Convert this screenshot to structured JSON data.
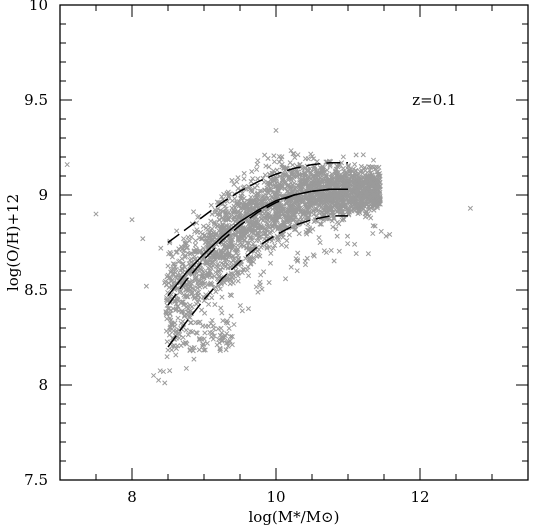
{
  "chart_data": {
    "type": "scatter",
    "title": "",
    "xlabel": "log(M*/M⊙)",
    "ylabel": "log(O/H)+12",
    "xlim": [
      7,
      13.5
    ],
    "ylim": [
      7.5,
      10
    ],
    "xticks": [
      8,
      10,
      12
    ],
    "xtick_labels": [
      "8",
      "10",
      "12"
    ],
    "yticks": [
      7.5,
      8,
      8.5,
      9,
      9.5,
      10
    ],
    "ytick_labels": [
      "7.5",
      "8",
      "8.5",
      "9",
      "9.5",
      "10"
    ],
    "grid": false,
    "legend": "none",
    "annotations": [
      {
        "text": "z=0.1",
        "x": 12.2,
        "y": 9.5
      }
    ],
    "colors": {
      "scatter": "#9a9a9a",
      "lines": "#000000",
      "axes": "#000000"
    },
    "scatter_outliers": [
      {
        "x": 7.1,
        "y": 9.16
      },
      {
        "x": 7.5,
        "y": 8.9
      },
      {
        "x": 8.0,
        "y": 8.87
      },
      {
        "x": 12.7,
        "y": 8.93
      },
      {
        "x": 8.3,
        "y": 8.05
      },
      {
        "x": 8.2,
        "y": 8.52
      },
      {
        "x": 8.15,
        "y": 8.77
      },
      {
        "x": 8.4,
        "y": 8.72
      },
      {
        "x": 10.0,
        "y": 9.34
      },
      {
        "x": 8.6,
        "y": 8.26
      },
      {
        "x": 8.75,
        "y": 8.22
      },
      {
        "x": 8.85,
        "y": 8.18
      }
    ],
    "scatter_cloud": {
      "description_points": [
        {
          "x": 8.5,
          "y_low": 8.2,
          "y_high": 8.75
        },
        {
          "x": 9.0,
          "y_low": 8.35,
          "y_high": 8.95
        },
        {
          "x": 9.5,
          "y_low": 8.55,
          "y_high": 9.1
        },
        {
          "x": 10.0,
          "y_low": 8.7,
          "y_high": 9.2
        },
        {
          "x": 10.5,
          "y_low": 8.8,
          "y_high": 9.22
        },
        {
          "x": 11.0,
          "y_low": 8.85,
          "y_high": 9.2
        },
        {
          "x": 11.4,
          "y_low": 8.9,
          "y_high": 9.15
        }
      ]
    },
    "series": [
      {
        "style": "long-dash",
        "x": [
          8.5,
          8.75,
          9.0,
          9.25,
          9.5,
          9.75,
          10.0,
          10.25,
          10.5,
          10.75,
          11.0
        ],
        "y": [
          8.42,
          8.55,
          8.66,
          8.76,
          8.84,
          8.91,
          8.96,
          9.0,
          9.02,
          9.03,
          9.03
        ]
      },
      {
        "style": "long-dash",
        "x": [
          8.5,
          8.75,
          9.0,
          9.25,
          9.5,
          9.75,
          10.0,
          10.25,
          10.5,
          10.75,
          11.0
        ],
        "y": [
          8.75,
          8.82,
          8.89,
          8.96,
          9.02,
          9.07,
          9.11,
          9.14,
          9.16,
          9.17,
          9.17
        ]
      },
      {
        "style": "long-dash",
        "x": [
          8.5,
          8.75,
          9.0,
          9.25,
          9.5,
          9.75,
          10.0,
          10.25,
          10.5,
          10.75,
          11.0
        ],
        "y": [
          8.2,
          8.33,
          8.45,
          8.56,
          8.65,
          8.73,
          8.79,
          8.84,
          8.87,
          8.89,
          8.89
        ]
      },
      {
        "style": "solid",
        "x": [
          8.5,
          8.75,
          9.0,
          9.25,
          9.5,
          9.75,
          10.0,
          10.25,
          10.5,
          10.75,
          11.0
        ],
        "y": [
          8.47,
          8.59,
          8.69,
          8.78,
          8.86,
          8.92,
          8.97,
          9.0,
          9.02,
          9.03,
          9.03
        ]
      }
    ]
  }
}
